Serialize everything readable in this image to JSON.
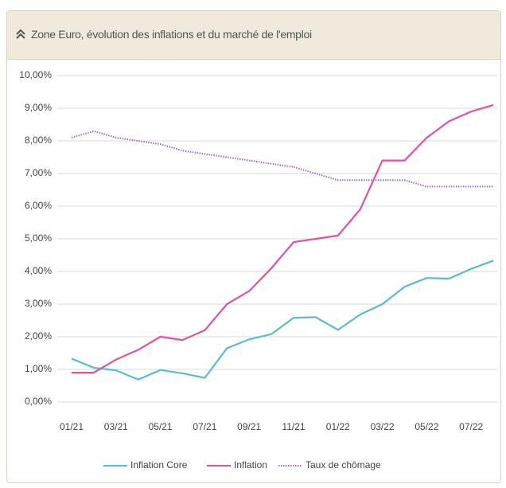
{
  "chart_data": {
    "type": "line",
    "title": "Zone Euro, évolution des inflations et du marché de l'emploi",
    "categories": [
      "01/21",
      null,
      "03/21",
      null,
      "05/21",
      null,
      "07/21",
      null,
      "09/21",
      null,
      "11/21",
      null,
      "01/22",
      null,
      "03/22",
      null,
      "05/22",
      null,
      "07/22",
      null
    ],
    "series": [
      {
        "name": "Inflation Core",
        "color": "#5bbccc",
        "style": "solid",
        "values": [
          1.33,
          1.05,
          0.97,
          0.69,
          0.98,
          0.88,
          0.74,
          1.65,
          1.92,
          2.08,
          2.58,
          2.6,
          2.21,
          2.68,
          3.0,
          3.53,
          3.8,
          3.78,
          4.08,
          4.33
        ]
      },
      {
        "name": "Inflation",
        "color": "#e0559a",
        "style": "solid",
        "values": [
          0.9,
          0.9,
          1.3,
          1.6,
          2.0,
          1.9,
          2.2,
          3.0,
          3.4,
          4.1,
          4.9,
          5.0,
          5.1,
          5.9,
          7.4,
          7.4,
          8.1,
          8.6,
          8.9,
          9.1
        ]
      },
      {
        "name": "Taux de chômage",
        "color": "#9b6fc0",
        "style": "dotted",
        "values": [
          8.1,
          8.3,
          8.1,
          8.0,
          7.9,
          7.7,
          7.6,
          7.5,
          7.4,
          7.3,
          7.2,
          7.0,
          6.8,
          6.8,
          6.8,
          6.8,
          6.6,
          6.6,
          6.6,
          6.6
        ]
      }
    ],
    "ylim": [
      0,
      10
    ],
    "yticks": [
      {
        "value": 0,
        "label": "0,00%"
      },
      {
        "value": 1,
        "label": "1,00%"
      },
      {
        "value": 2,
        "label": "2,00%"
      },
      {
        "value": 3,
        "label": "3,00%"
      },
      {
        "value": 4,
        "label": "4,00%"
      },
      {
        "value": 5,
        "label": "5,00%"
      },
      {
        "value": 6,
        "label": "6,00%"
      },
      {
        "value": 7,
        "label": "7,00%"
      },
      {
        "value": 8,
        "label": "8,00%"
      },
      {
        "value": 9,
        "label": "9,00%"
      },
      {
        "value": 10,
        "label": "10,00%"
      }
    ],
    "grid": true,
    "legend": "bottom"
  }
}
